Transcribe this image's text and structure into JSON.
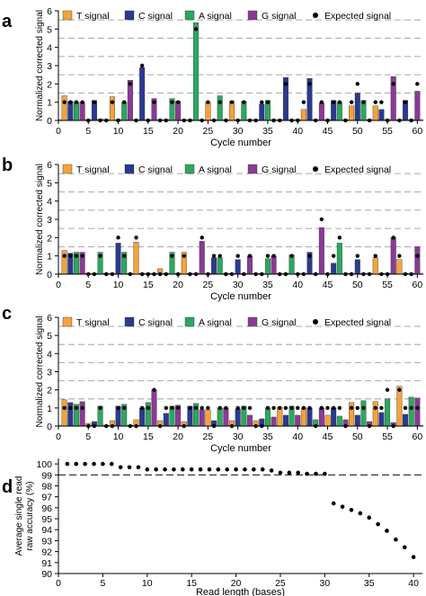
{
  "figure": {
    "panel_letters": [
      "a",
      "b",
      "c",
      "d"
    ]
  },
  "colors": {
    "T": "#f5a33a",
    "C": "#2b3990",
    "A": "#2aa860",
    "G": "#8b3a96",
    "expected": "#000000",
    "dashed": "#b3b3b3",
    "baseline": "#a6a6a6"
  },
  "chart_data": [
    {
      "type": "bar",
      "panel": "a",
      "title": "",
      "xlabel": "Cycle number",
      "ylabel": "Normalized corrected signal",
      "xlim": [
        0,
        61
      ],
      "ylim": [
        0,
        6
      ],
      "xticks": [
        "0",
        "5",
        "10",
        "15",
        "20",
        "25",
        "30",
        "35",
        "40",
        "45",
        "50",
        "55",
        "60"
      ],
      "yticks": [
        "0",
        "1",
        "2",
        "3",
        "4",
        "5",
        "6"
      ],
      "dashed_gridlines": [
        1.5,
        2.5,
        3.5,
        4.5,
        5.5
      ],
      "legend": [
        "T signal",
        "C signal",
        "A signal",
        "G signal",
        "Expected signal"
      ],
      "cycles": [
        1,
        2,
        3,
        4,
        5,
        6,
        7,
        8,
        9,
        10,
        11,
        12,
        13,
        14,
        15,
        16,
        17,
        18,
        19,
        20,
        21,
        22,
        23,
        24,
        25,
        26,
        27,
        28,
        29,
        30,
        31,
        32,
        33,
        34,
        35,
        36,
        37,
        38,
        39,
        40,
        41,
        42,
        43,
        44,
        45,
        46,
        47,
        48,
        49,
        50,
        51,
        52,
        53,
        54,
        55,
        56,
        57,
        58,
        59,
        60
      ],
      "bases": "TCAGTCAGTCAGTCAGTCAGTCAGTCAGTCAGTCAGTCAGTCAGTCAGTCAGTCAGTCAG",
      "signal": [
        1.35,
        1.05,
        1.0,
        1.0,
        0.05,
        1.1,
        0.08,
        0.05,
        1.3,
        0.05,
        1.0,
        2.2,
        0.05,
        2.9,
        0.05,
        1.2,
        0.05,
        0.05,
        1.2,
        1.05,
        0.05,
        0.05,
        5.35,
        0.05,
        1.0,
        0.05,
        1.35,
        0.05,
        1.05,
        0.05,
        1.05,
        0.05,
        0.05,
        0.9,
        1.1,
        0.05,
        0.05,
        2.35,
        0.05,
        0.05,
        0.6,
        2.3,
        0.05,
        0.95,
        0.05,
        1.1,
        1.0,
        0.05,
        0.8,
        1.5,
        1.1,
        0.05,
        0.8,
        0.6,
        0.05,
        2.4,
        0.05,
        1.1,
        0.05,
        1.6
      ],
      "expected": [
        1,
        1,
        1,
        1,
        0,
        1,
        0,
        0,
        1,
        0,
        1,
        2,
        0,
        3,
        0,
        1,
        0,
        0,
        1,
        1,
        0,
        0,
        5,
        0,
        1,
        0,
        1,
        0,
        1,
        0,
        1,
        0,
        0,
        1,
        1,
        0,
        0,
        2,
        0,
        0,
        1,
        2,
        0,
        1,
        0,
        1,
        1,
        0,
        1,
        2,
        1,
        0,
        1,
        1,
        0,
        2,
        0,
        1,
        0,
        2
      ]
    },
    {
      "type": "bar",
      "panel": "b",
      "title": "",
      "xlabel": "Cycle number",
      "ylabel": "Normalized corrected signal",
      "xlim": [
        0,
        61
      ],
      "ylim": [
        0,
        6
      ],
      "xticks": [
        "0",
        "5",
        "10",
        "15",
        "20",
        "25",
        "30",
        "35",
        "40",
        "45",
        "50",
        "55",
        "60"
      ],
      "yticks": [
        "0",
        "1",
        "2",
        "3",
        "4",
        "5",
        "6"
      ],
      "dashed_gridlines": [
        1.5,
        2.5,
        3.5,
        4.5,
        5.5
      ],
      "legend": [
        "T signal",
        "C signal",
        "A signal",
        "G signal",
        "Expected signal"
      ],
      "cycles": [
        1,
        2,
        3,
        4,
        5,
        6,
        7,
        8,
        9,
        10,
        11,
        12,
        13,
        14,
        15,
        16,
        17,
        18,
        19,
        20,
        21,
        22,
        23,
        24,
        25,
        26,
        27,
        28,
        29,
        30,
        31,
        32,
        33,
        34,
        35,
        36,
        37,
        38,
        39,
        40,
        41,
        42,
        43,
        44,
        45,
        46,
        47,
        48,
        49,
        50,
        51,
        52,
        53,
        54,
        55,
        56,
        57,
        58,
        59,
        60
      ],
      "bases": "TCAGTCAGTCAGTCAGTCAGTCAGTCAGTCAGTCAGTCAGTCAGTCAGTCAGTCAGTCAG",
      "signal": [
        1.3,
        1.15,
        1.2,
        1.2,
        0.05,
        0.05,
        1.2,
        0.05,
        0.05,
        1.7,
        1.2,
        0.05,
        1.75,
        0.05,
        0.05,
        0.05,
        0.3,
        0.05,
        1.2,
        0.05,
        1.2,
        0.05,
        0.05,
        1.8,
        0.05,
        0.9,
        0.9,
        0.05,
        0.05,
        0.8,
        0.05,
        1.0,
        0.05,
        0.05,
        0.85,
        1.0,
        0.05,
        0.05,
        1.05,
        0.05,
        0.05,
        1.2,
        0.05,
        2.55,
        0.05,
        0.6,
        1.7,
        0.05,
        0.05,
        0.8,
        0.05,
        0.05,
        0.9,
        0.05,
        0.05,
        2.0,
        0.8,
        0.05,
        0.05,
        1.5
      ],
      "expected": [
        1,
        1,
        1,
        1,
        0,
        0,
        1,
        0,
        0,
        2,
        1,
        0,
        2,
        0,
        0,
        0,
        0,
        0,
        1,
        0,
        1,
        0,
        0,
        2,
        0,
        1,
        1,
        0,
        0,
        1,
        0,
        1,
        0,
        0,
        1,
        1,
        0,
        0,
        1,
        0,
        0,
        1,
        0,
        3,
        0,
        1,
        2,
        0,
        0,
        1,
        0,
        0,
        1,
        0,
        0,
        2,
        1,
        0,
        0,
        1
      ]
    },
    {
      "type": "bar",
      "panel": "c",
      "title": "",
      "xlabel": "Cycle number",
      "ylabel": "Normalized corrected signal",
      "xlim": [
        0,
        61
      ],
      "ylim": [
        0,
        6
      ],
      "xticks": [
        "0",
        "5",
        "10",
        "15",
        "20",
        "25",
        "30",
        "35",
        "40",
        "45",
        "50",
        "55",
        "60"
      ],
      "yticks": [
        "0",
        "1",
        "2",
        "3",
        "4",
        "5",
        "6"
      ],
      "dashed_gridlines": [
        1.5,
        2.5,
        3.5,
        4.5,
        5.5
      ],
      "legend": [
        "T signal",
        "C signal",
        "A signal",
        "G signal",
        "Expected signal"
      ],
      "cycles": [
        1,
        2,
        3,
        4,
        5,
        6,
        7,
        8,
        9,
        10,
        11,
        12,
        13,
        14,
        15,
        16,
        17,
        18,
        19,
        20,
        21,
        22,
        23,
        24,
        25,
        26,
        27,
        28,
        29,
        30,
        31,
        32,
        33,
        34,
        35,
        36,
        37,
        38,
        39,
        40,
        41,
        42,
        43,
        44,
        45,
        46,
        47,
        48,
        49,
        50,
        51,
        52,
        53,
        54,
        55,
        56,
        57,
        58,
        59,
        60
      ],
      "bases": "TCAGTCAGTCAGTCAGTCAGTCAGTCAGTCAGTCAGTCAGTCAGTCAGTCAGTCAGTCAG",
      "signal": [
        1.45,
        1.3,
        1.2,
        1.35,
        0.15,
        0.25,
        1.1,
        0.05,
        0.3,
        1.1,
        1.2,
        0.05,
        0.35,
        1.0,
        1.3,
        2.0,
        0.3,
        0.7,
        1.1,
        1.15,
        0.25,
        1.1,
        1.25,
        0.9,
        0.9,
        0.3,
        1.0,
        1.0,
        0.3,
        0.95,
        1.1,
        0.6,
        0.3,
        0.4,
        1.0,
        0.5,
        1.05,
        0.6,
        1.1,
        0.6,
        1.0,
        1.0,
        0.35,
        1.0,
        0.6,
        1.0,
        0.55,
        0.35,
        1.3,
        0.6,
        1.4,
        0.25,
        1.35,
        0.75,
        1.5,
        0.2,
        2.2,
        0.65,
        1.6,
        1.55
      ],
      "expected": [
        1,
        1,
        1,
        1,
        0,
        0,
        1,
        0,
        0,
        1,
        1,
        0,
        0,
        1,
        1,
        2,
        0,
        1,
        1,
        1,
        0,
        1,
        1,
        1,
        1,
        0,
        1,
        1,
        0,
        1,
        1,
        1,
        0,
        0,
        1,
        1,
        1,
        1,
        1,
        1,
        1,
        1,
        0,
        1,
        1,
        1,
        1,
        0,
        1,
        1,
        1,
        0,
        1,
        1,
        2,
        0,
        2,
        1,
        1,
        1
      ]
    },
    {
      "type": "scatter",
      "panel": "d",
      "title": "",
      "xlabel": "Read length (bases)",
      "ylabel": "Average single read raw accuracy (%)",
      "ylabel_lines": [
        "Average single read",
        "raw accuracy (%)"
      ],
      "xlim": [
        0,
        41
      ],
      "ylim": [
        90,
        100.5
      ],
      "xticks": [
        "0",
        "5",
        "10",
        "15",
        "20",
        "25",
        "30",
        "35",
        "40"
      ],
      "yticks": [
        "90",
        "91",
        "92",
        "93",
        "94",
        "95",
        "96",
        "97",
        "98",
        "99",
        "100"
      ],
      "reference_line": 99,
      "x": [
        1,
        2,
        3,
        4,
        5,
        6,
        7,
        8,
        9,
        10,
        11,
        12,
        13,
        14,
        15,
        16,
        17,
        18,
        19,
        20,
        21,
        22,
        23,
        24,
        25,
        26,
        27,
        28,
        29,
        30,
        31,
        32,
        33,
        34,
        35,
        36,
        37,
        38,
        39,
        40
      ],
      "y": [
        100,
        100,
        100,
        100,
        100,
        100,
        99.7,
        99.7,
        99.7,
        99.5,
        99.5,
        99.5,
        99.5,
        99.5,
        99.5,
        99.5,
        99.5,
        99.5,
        99.5,
        99.5,
        99.5,
        99.5,
        99.5,
        99.4,
        99.2,
        99.2,
        99.2,
        99.1,
        99.1,
        99.1,
        96.4,
        96.1,
        95.8,
        95.5,
        95.1,
        94.5,
        93.9,
        93.1,
        92.4,
        91.5
      ]
    }
  ]
}
